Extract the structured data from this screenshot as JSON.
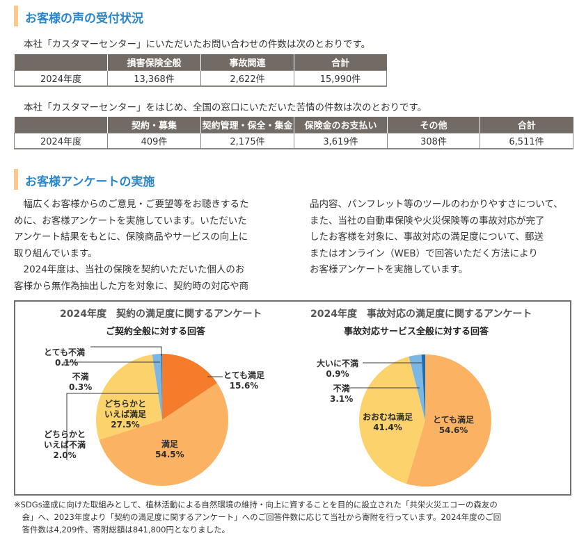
{
  "section1": {
    "title": "お客様の声の受付状況",
    "intro1": "本社「カスタマーセンター」にいただいたお問い合わせの件数は次のとおりです。",
    "table1": {
      "headers": [
        "",
        "損害保険全般",
        "事故関連",
        "合計"
      ],
      "row": [
        "2024年度",
        "13,368件",
        "2,622件",
        "15,990件"
      ]
    },
    "intro2": "本社「カスタマーセンター」をはじめ、全国の窓口にいただいた苦情の件数は次のとおりです。",
    "table2": {
      "headers": [
        "",
        "契約・募集",
        "契約管理・保全・集金",
        "保険金のお支払い",
        "その他",
        "合計"
      ],
      "row": [
        "2024年度",
        "409件",
        "2,175件",
        "3,619件",
        "308件",
        "6,511件"
      ]
    }
  },
  "section2": {
    "title": "お客様アンケートの実施",
    "left_lines": [
      "　幅広くお客様からのご意見・ご要望等をお聴きするた",
      "めに、お客様アンケートを実施しています。いただいた",
      "アンケート結果をもとに、保険商品やサービスの向上に",
      "取り組んでいます。",
      "　2024年度は、当社の保険を契約いただいた個人のお",
      "客様から無作為抽出した方を対象に、契約時の対応や商"
    ],
    "right_lines": [
      "品内容、パンフレット等のツールのわかりやすさについて、",
      "また、当社の自動車保険や火災保険等の事故対応が完了",
      "したお客様を対象に、事故対応の満足度について、郵送",
      "またはオンライン（WEB）で回答いただく方法により",
      "お客様アンケートを実施しています。"
    ]
  },
  "chart_data": [
    {
      "type": "pie",
      "title": "2024年度　契約の満足度に関するアンケート",
      "subtitle": "ご契約全般に対する回答",
      "start": "12 o'clock, clockwise",
      "slices": [
        {
          "label": "とても満足",
          "value": 15.6,
          "display": "15.6%",
          "color": "#f57c2a"
        },
        {
          "label": "満足",
          "value": 54.5,
          "display": "54.5%",
          "color": "#fbb363"
        },
        {
          "label": "どちらかといえば満足",
          "label_lines": [
            "どちらかと",
            "いえば満足"
          ],
          "value": 27.5,
          "display": "27.5%",
          "color": "#fcd26c"
        },
        {
          "label": "どちらかといえば不満",
          "label_lines": [
            "どちらかと",
            "いえば不満"
          ],
          "value": 2.0,
          "display": "2.0%",
          "color": "#7cb6e2"
        },
        {
          "label": "不満",
          "value": 0.3,
          "display": "0.3%",
          "color": "#4a8fcf"
        },
        {
          "label": "とても不満",
          "value": 0.1,
          "display": "0.1%",
          "color": "#1c6db5"
        }
      ]
    },
    {
      "type": "pie",
      "title": "2024年度　事故対応の満足度に関するアンケート",
      "subtitle": "事故対応サービス全般に対する回答",
      "start": "12 o'clock, clockwise",
      "slices": [
        {
          "label": "とても満足",
          "value": 54.6,
          "display": "54.6%",
          "color": "#fbb363"
        },
        {
          "label": "おおむね満足",
          "value": 41.4,
          "display": "41.4%",
          "color": "#fcd26c"
        },
        {
          "label": "不満",
          "value": 3.1,
          "display": "3.1%",
          "color": "#7cb6e2"
        },
        {
          "label": "大いに不満",
          "value": 0.9,
          "display": "0.9%",
          "color": "#1c6db5"
        }
      ]
    }
  ],
  "footnote": {
    "lines": [
      "※SDGs達成に向けた取組みとして、植林活動による自然環境の維持・向上に資することを目的に設立された「共栄火災エコーの森友の",
      "　会」へ、2023年度より「契約の満足度に関するアンケート」へのご回答件数に応じて当社から寄附を行っています。2024年度のご回",
      "　答件数は4,209件、寄附総額は841,800円となりました。"
    ]
  }
}
